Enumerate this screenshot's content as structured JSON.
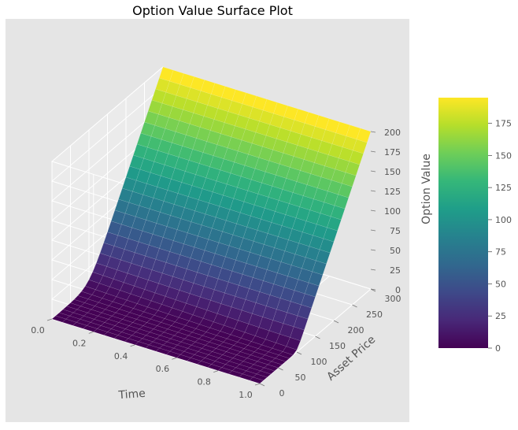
{
  "chart_data": {
    "type": "surface",
    "title": "Option Value Surface Plot",
    "xlabel": "Time",
    "ylabel": "Asset Price",
    "zlabel": "Option Value",
    "x_ticks": [
      "0.0",
      "0.2",
      "0.4",
      "0.6",
      "0.8",
      "1.0"
    ],
    "y_ticks": [
      "0",
      "50",
      "100",
      "150",
      "200",
      "250",
      "300"
    ],
    "z_ticks": [
      "0",
      "25",
      "50",
      "75",
      "100",
      "125",
      "150",
      "175",
      "200"
    ],
    "xlim": [
      0,
      1
    ],
    "ylim": [
      0,
      300
    ],
    "zlim": [
      0,
      200
    ],
    "strike": 100,
    "z_max": 200,
    "grid": true,
    "colormap": "viridis",
    "colorbar": {
      "ticks": [
        "0",
        "25",
        "50",
        "75",
        "100",
        "125",
        "150",
        "175"
      ],
      "range": [
        0,
        195
      ],
      "placement": "right"
    }
  },
  "colors": {
    "pane": "#e5e5e5",
    "grid": "#ffffff",
    "text": "#555555",
    "title": "#000000"
  }
}
